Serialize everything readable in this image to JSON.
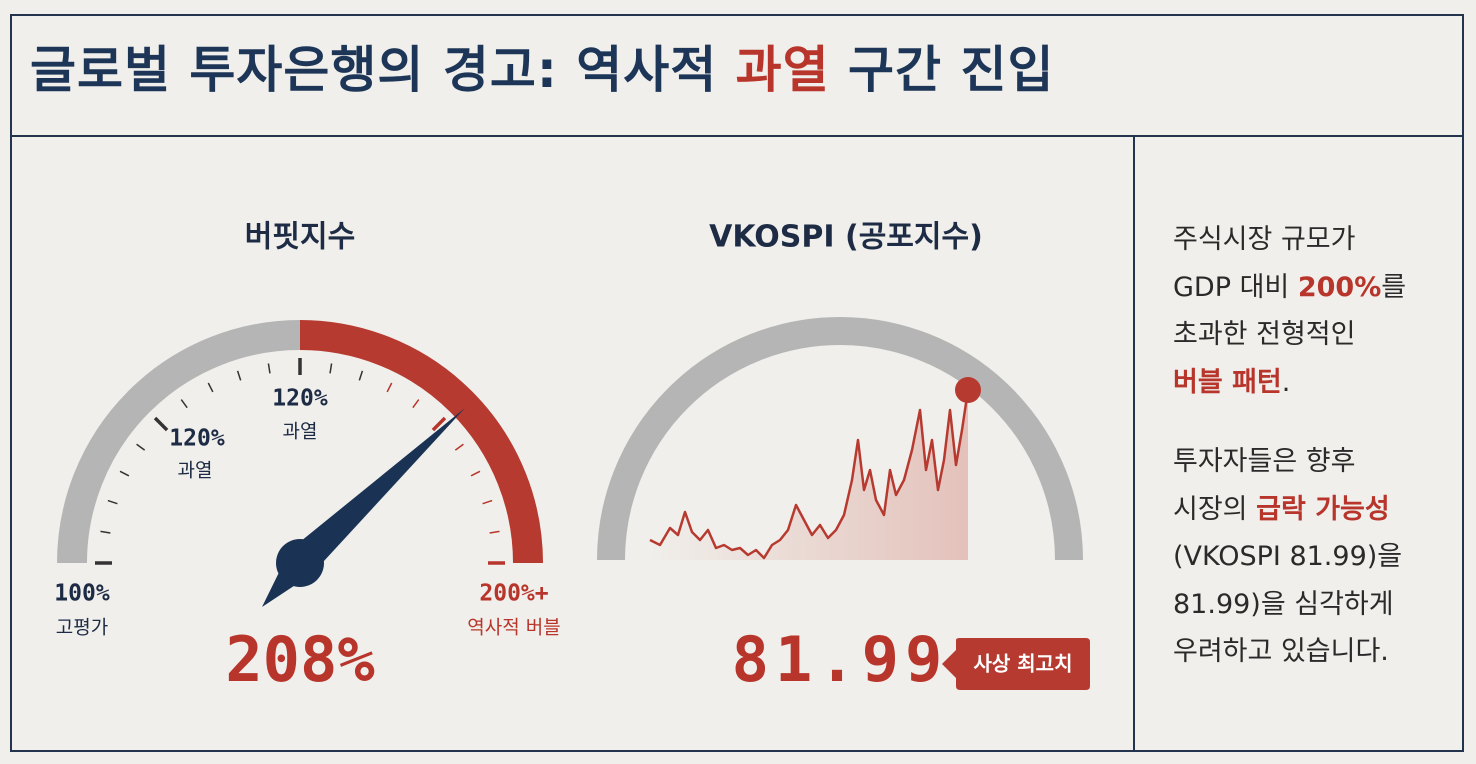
{
  "header": {
    "title": {
      "before": "글로벌 투자은행의 경고: 역사적 ",
      "highlight": "과열",
      "after": " 구간 진입"
    }
  },
  "gauge": {
    "title": "버핏지수",
    "value_label": "208%",
    "labels": [
      {
        "value": "100%",
        "caption": "고평가"
      },
      {
        "value": "120%",
        "caption": "과열"
      },
      {
        "value": "120%",
        "caption": "과열"
      },
      {
        "value": "200%+",
        "caption": "역사적 버블"
      }
    ]
  },
  "vkospi": {
    "title": "VKOSPI (공포지수)",
    "value_label": "81.99",
    "badge": "사상 최고치"
  },
  "side": {
    "paragraphs": [
      [
        [
          {
            "t": "주식시장 규모가"
          }
        ],
        [
          {
            "t": "GDP 대비 "
          },
          {
            "t": "200%",
            "em": true
          },
          {
            "t": "를"
          }
        ],
        [
          {
            "t": "초과한 전형적인"
          }
        ],
        [
          {
            "t": "버블 패턴",
            "em": true
          },
          {
            "t": "."
          }
        ]
      ],
      [
        [
          {
            "t": "투자자들은 향후"
          }
        ],
        [
          {
            "t": "시장의 "
          },
          {
            "t": "급락 가능성",
            "em": true
          }
        ],
        [
          {
            "t": "(VKOSPI 81.99)을"
          }
        ],
        [
          {
            "t": "81.99)을 심각하게"
          }
        ],
        [
          {
            "t": "우려하고 있습니다."
          }
        ]
      ]
    ]
  }
}
